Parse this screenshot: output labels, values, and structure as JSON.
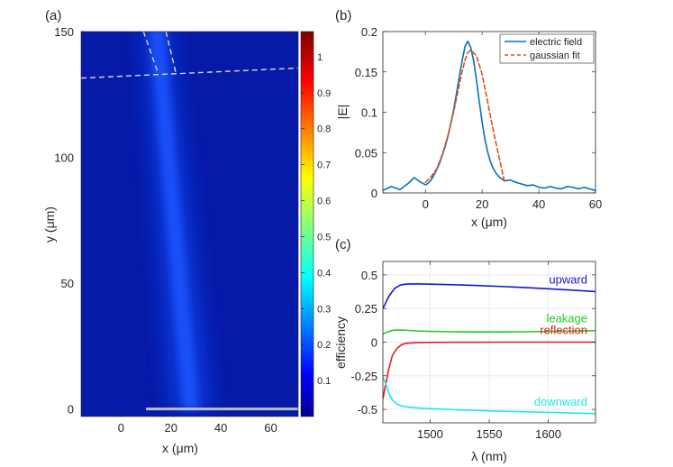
{
  "chart_data": [
    {
      "panel": "(a)",
      "type": "heatmap",
      "xlabel": "x (μm)",
      "ylabel": "y (μm)",
      "xlim": [
        -16,
        71
      ],
      "ylim": [
        -3,
        150
      ],
      "xticks": [
        0,
        20,
        40,
        60
      ],
      "yticks": [
        0,
        50,
        100,
        150
      ],
      "colorbar": {
        "cmap": "jet",
        "range": [
          0,
          1.07
        ],
        "ticks": [
          0.1,
          0.2,
          0.3,
          0.4,
          0.5,
          0.6,
          0.7,
          0.8,
          0.9,
          1
        ]
      },
      "beam": {
        "y_start": 0,
        "x_start": 28,
        "y_end": 150,
        "x_end": 14
      },
      "grating_line": {
        "x": [
          10,
          71
        ],
        "y": 0
      },
      "dashed_lines": [
        {
          "x": [
            -16,
            71
          ],
          "y": [
            131.5,
            135.5
          ]
        },
        {
          "x": [
            9,
            15
          ],
          "y": [
            150,
            133
          ]
        },
        {
          "x": [
            18,
            22
          ],
          "y": [
            150,
            133.5
          ]
        }
      ]
    },
    {
      "panel": "(b)",
      "type": "line",
      "xlabel": "x (μm)",
      "ylabel": "|E|",
      "xlim": [
        -15,
        60
      ],
      "ylim": [
        0,
        0.2
      ],
      "xticks": [
        0,
        20,
        40,
        60
      ],
      "yticks": [
        0,
        0.05,
        0.1,
        0.15,
        0.2
      ],
      "legend_position": "top-right",
      "series": [
        {
          "name": "electric field",
          "color": "#0072BD",
          "style": "solid",
          "x": [
            -15,
            -12,
            -9,
            -6,
            -4,
            -2,
            0,
            1,
            2,
            3,
            4,
            5,
            6,
            7,
            8,
            9,
            10,
            11,
            12,
            13,
            14,
            15,
            16,
            17,
            18,
            19,
            20,
            21,
            22,
            23,
            24,
            25,
            26,
            27,
            28,
            30,
            32,
            34,
            36,
            38,
            40,
            42,
            44,
            46,
            48,
            50,
            52,
            54,
            56,
            58,
            60
          ],
          "y": [
            0.003,
            0.008,
            0.004,
            0.012,
            0.019,
            0.014,
            0.01,
            0.012,
            0.016,
            0.022,
            0.029,
            0.037,
            0.047,
            0.058,
            0.071,
            0.087,
            0.104,
            0.124,
            0.145,
            0.165,
            0.182,
            0.188,
            0.18,
            0.164,
            0.14,
            0.113,
            0.088,
            0.066,
            0.05,
            0.038,
            0.03,
            0.024,
            0.02,
            0.017,
            0.015,
            0.016,
            0.013,
            0.011,
            0.009,
            0.01,
            0.007,
            0.006,
            0.008,
            0.006,
            0.005,
            0.008,
            0.007,
            0.005,
            0.007,
            0.005,
            0.003
          ]
        },
        {
          "name": "gaussian fit",
          "color": "#D95319",
          "style": "dashed",
          "x": [
            0,
            2,
            4,
            6,
            8,
            10,
            12,
            13,
            14,
            15,
            16,
            18,
            20,
            22,
            24,
            26,
            28
          ],
          "y": [
            0.013,
            0.02,
            0.03,
            0.048,
            0.072,
            0.101,
            0.135,
            0.151,
            0.165,
            0.174,
            0.177,
            0.17,
            0.147,
            0.112,
            0.076,
            0.044,
            0.012
          ]
        }
      ]
    },
    {
      "panel": "(c)",
      "type": "line",
      "xlabel": "λ (nm)",
      "ylabel": "efficiency",
      "xlim": [
        1460,
        1640
      ],
      "ylim": [
        -0.6,
        0.6
      ],
      "xticks": [
        1500,
        1550,
        1600
      ],
      "yticks": [
        -0.5,
        -0.25,
        0,
        0.25,
        0.5
      ],
      "grid": true,
      "series": [
        {
          "name": "upward",
          "color": "#1515d0",
          "x": [
            1460,
            1465,
            1470,
            1475,
            1480,
            1485,
            1490,
            1500,
            1520,
            1540,
            1560,
            1580,
            1600,
            1620,
            1640
          ],
          "y": [
            0.25,
            0.34,
            0.4,
            0.425,
            0.432,
            0.433,
            0.433,
            0.431,
            0.427,
            0.421,
            0.414,
            0.406,
            0.397,
            0.387,
            0.376
          ]
        },
        {
          "name": "leakage",
          "color": "#22cc22",
          "x": [
            1460,
            1465,
            1470,
            1475,
            1480,
            1490,
            1500,
            1520,
            1540,
            1560,
            1580,
            1600,
            1620,
            1640
          ],
          "y": [
            0.06,
            0.08,
            0.09,
            0.09,
            0.088,
            0.083,
            0.08,
            0.077,
            0.076,
            0.076,
            0.077,
            0.079,
            0.082,
            0.086
          ]
        },
        {
          "name": "reflection",
          "color": "#e61c1c",
          "x": [
            1460,
            1462,
            1465,
            1468,
            1472,
            1476,
            1480,
            1490,
            1500,
            1520,
            1540,
            1560,
            1580,
            1600,
            1620,
            1640
          ],
          "y": [
            -0.42,
            -0.33,
            -0.2,
            -0.1,
            -0.045,
            -0.018,
            -0.008,
            -0.003,
            -0.002,
            -0.001,
            -0.001,
            0.0,
            0.0,
            0.0,
            0.0,
            0.0
          ]
        },
        {
          "name": "downward",
          "color": "#1ee6ee",
          "x": [
            1460,
            1462,
            1465,
            1468,
            1472,
            1476,
            1480,
            1490,
            1500,
            1520,
            1540,
            1560,
            1580,
            1600,
            1620,
            1640
          ],
          "y": [
            -0.26,
            -0.3,
            -0.38,
            -0.43,
            -0.46,
            -0.475,
            -0.482,
            -0.49,
            -0.495,
            -0.502,
            -0.508,
            -0.513,
            -0.518,
            -0.522,
            -0.527,
            -0.532
          ]
        }
      ]
    }
  ]
}
